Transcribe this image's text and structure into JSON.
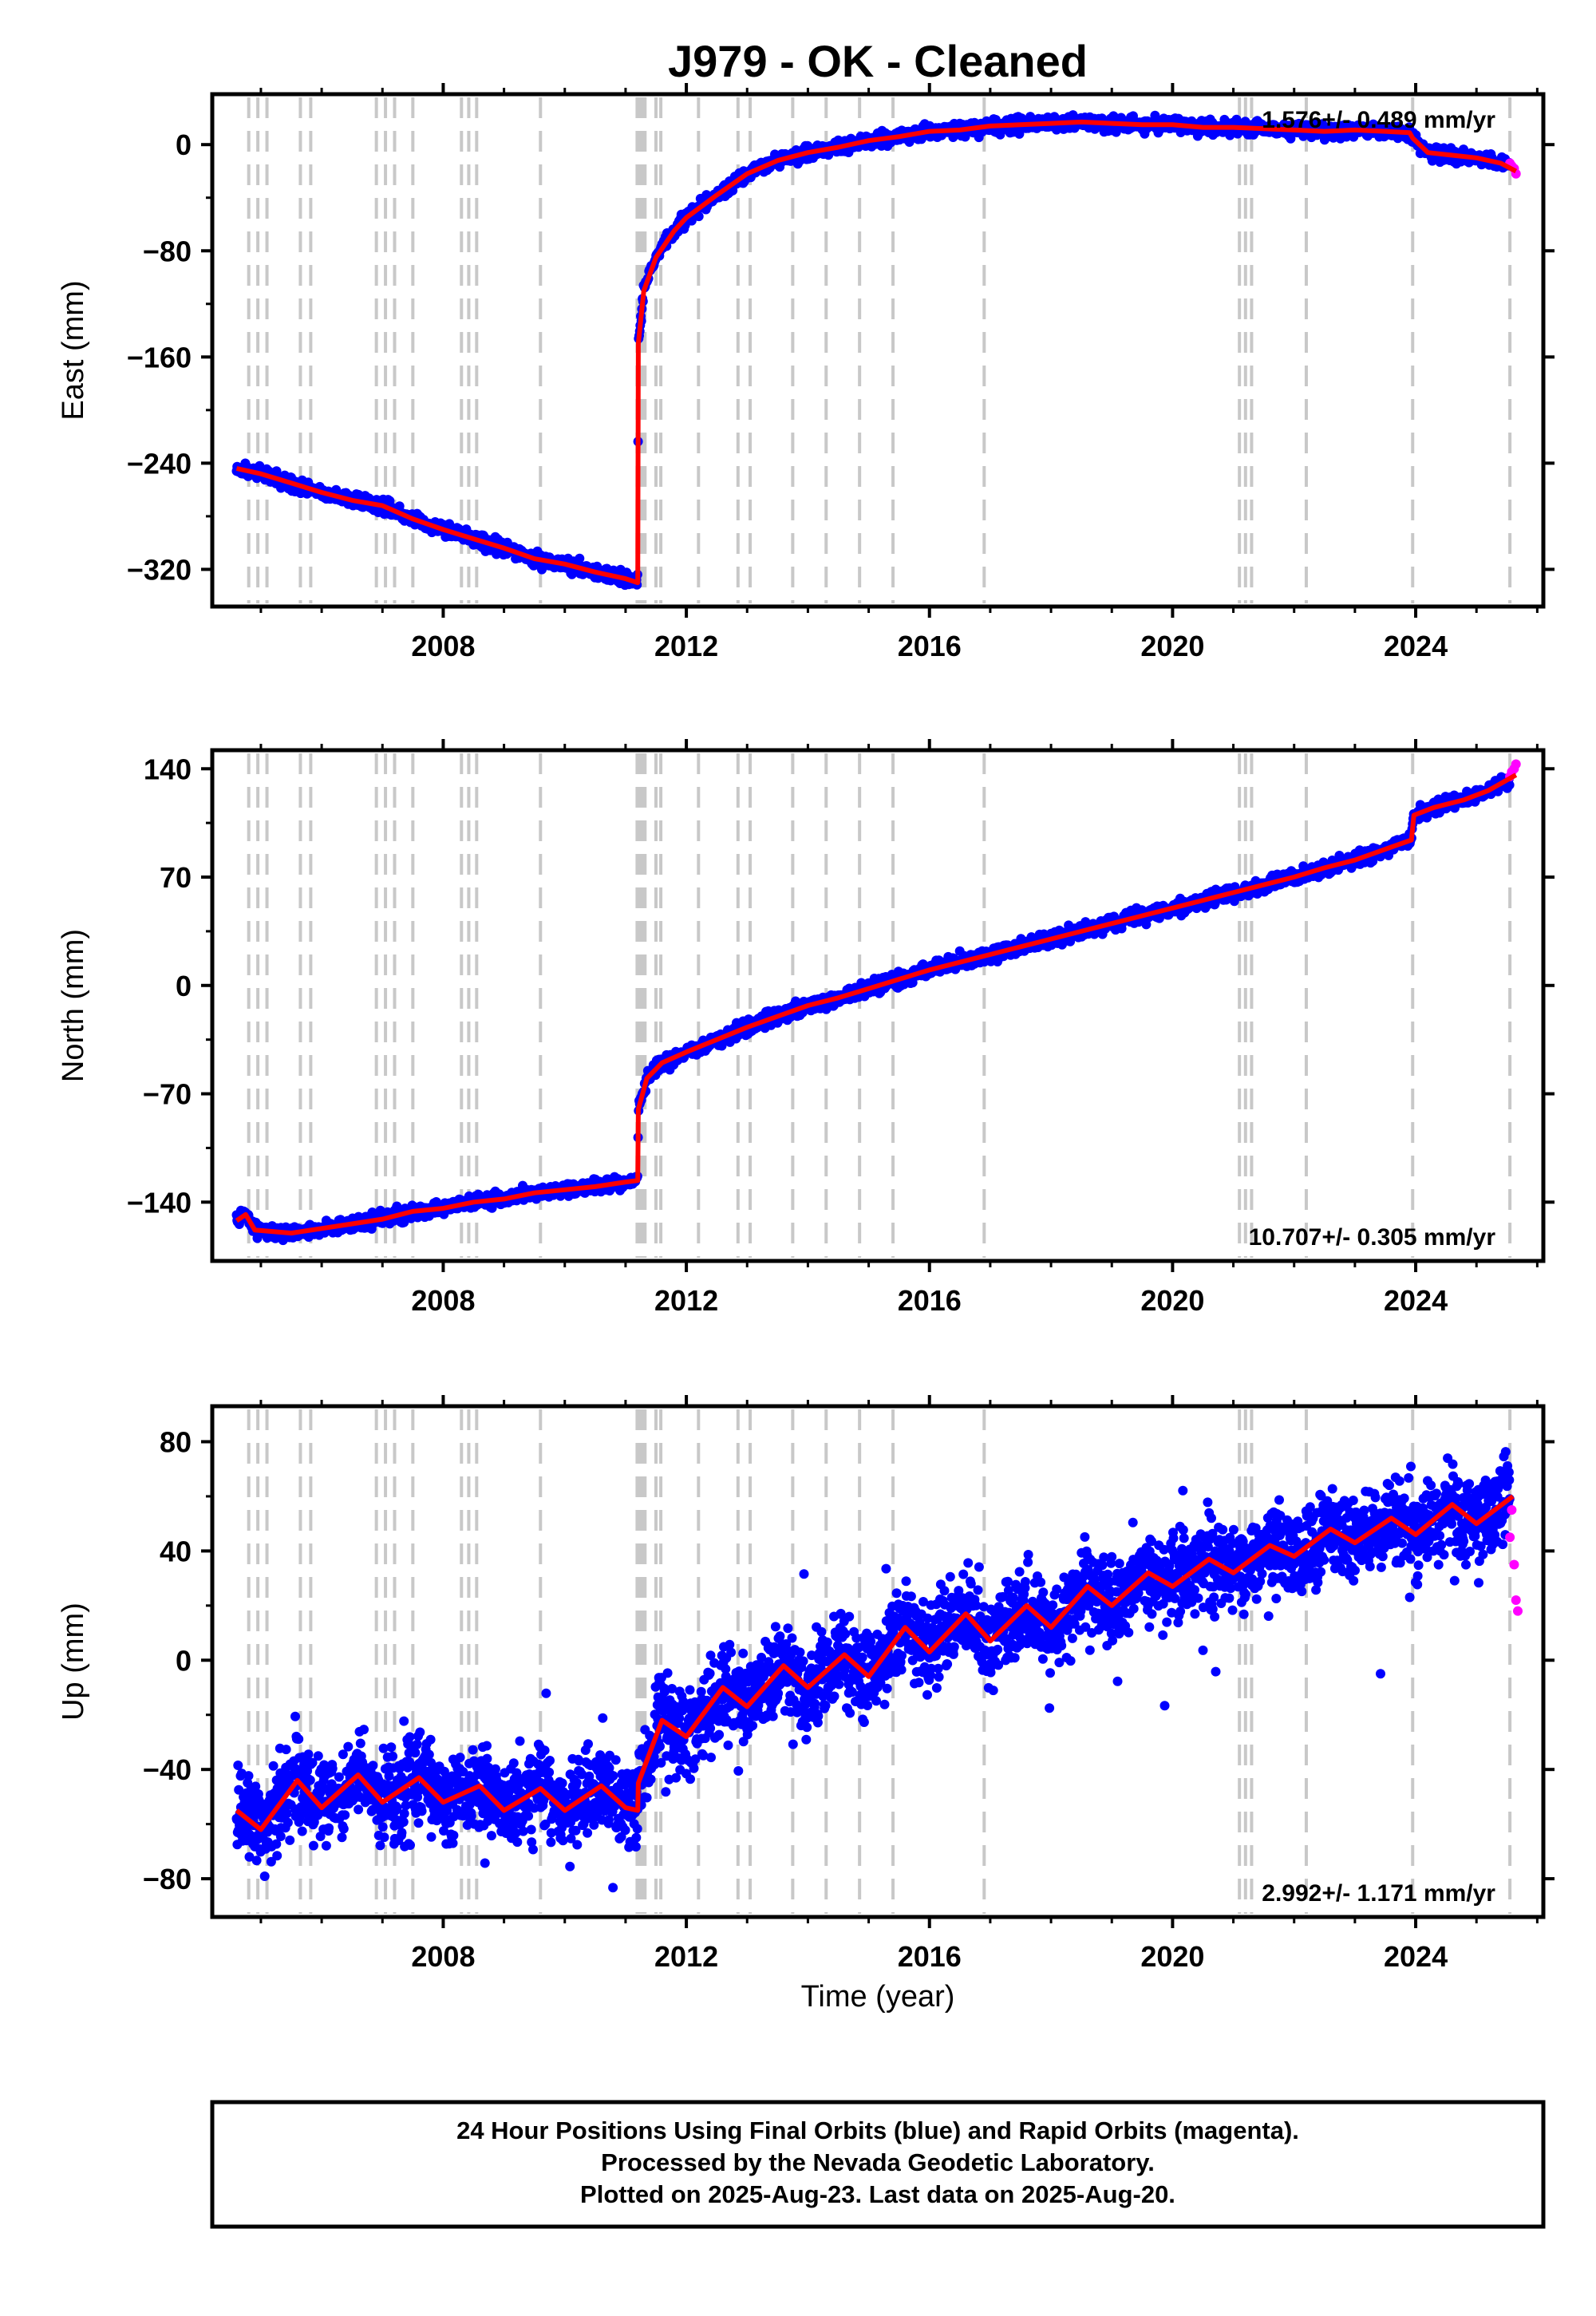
{
  "title": "J979  - OK - Cleaned",
  "x_label": "Time (year)",
  "footer": {
    "line1": "24 Hour Positions Using Final Orbits (blue) and Rapid Orbits (magenta).",
    "line2": "Processed by the Nevada Geodetic Laboratory.",
    "line3": "Plotted on 2025-Aug-23. Last data on 2025-Aug-20."
  },
  "colors": {
    "final_orbits": "#0000ff",
    "rapid_orbits": "#ff00ff",
    "model_fit": "#ff0000",
    "event_lines": "#c8c8c8"
  },
  "chart_data": [
    {
      "type": "scatter",
      "panel": "east",
      "ylabel": "East (mm)",
      "xlim": [
        2004.2,
        2026.1
      ],
      "ylim": [
        -348,
        38
      ],
      "xticks": [
        2008,
        2012,
        2016,
        2020,
        2024
      ],
      "yticks": [
        -320,
        -240,
        -160,
        -80,
        0
      ],
      "rate_text": "1.576+/- 0.489 mm/yr",
      "legend_position": "top-right",
      "event_lines": [
        2004.8,
        2004.95,
        2005.1,
        2005.65,
        2005.82,
        2006.9,
        2007.05,
        2007.2,
        2007.5,
        2008.3,
        2008.42,
        2008.55,
        2009.6,
        2011.19,
        2011.22,
        2011.25,
        2011.28,
        2011.32,
        2011.5,
        2011.58,
        2012.2,
        2012.85,
        2013.05,
        2013.75,
        2014.3,
        2014.85,
        2015.4,
        2016.9,
        2021.1,
        2021.2,
        2021.3,
        2022.2,
        2023.95,
        2025.55
      ],
      "series": [
        {
          "label": "model",
          "x": [
            2004.6,
            2005.0,
            2005.5,
            2006.0,
            2006.5,
            2007.0,
            2007.5,
            2008.0,
            2008.5,
            2009.0,
            2009.5,
            2010.0,
            2010.5,
            2011.0,
            2011.2,
            2011.21,
            2011.3,
            2011.5,
            2011.8,
            2012.0,
            2012.5,
            2013.0,
            2013.5,
            2014.0,
            2014.5,
            2015.0,
            2015.5,
            2016.0,
            2016.5,
            2017.0,
            2017.5,
            2018.0,
            2018.5,
            2019.0,
            2019.5,
            2020.0,
            2020.5,
            2021.0,
            2021.5,
            2022.0,
            2022.5,
            2023.0,
            2023.5,
            2023.9,
            2023.95,
            2024.2,
            2024.6,
            2025.0,
            2025.4,
            2025.65
          ],
          "y": [
            -244,
            -248,
            -255,
            -262,
            -268,
            -272,
            -282,
            -290,
            -297,
            -304,
            -312,
            -316,
            -322,
            -327,
            -330,
            -150,
            -110,
            -85,
            -65,
            -55,
            -38,
            -22,
            -12,
            -6,
            -2,
            3,
            6,
            10,
            11,
            14,
            15,
            16,
            17,
            16,
            15,
            15,
            13,
            13,
            12,
            11,
            10,
            11,
            10,
            9,
            5,
            -6,
            -8,
            -10,
            -14,
            -20
          ]
        },
        {
          "label": "rapid",
          "x": [
            2025.55,
            2025.58,
            2025.62,
            2025.65
          ],
          "y": [
            -14,
            -16,
            -18,
            -22
          ]
        }
      ]
    },
    {
      "type": "scatter",
      "panel": "north",
      "ylabel": "North (mm)",
      "xlim": [
        2004.2,
        2026.1
      ],
      "ylim": [
        -178,
        152
      ],
      "xticks": [
        2008,
        2012,
        2016,
        2020,
        2024
      ],
      "yticks": [
        -140,
        -70,
        0,
        70,
        140
      ],
      "rate_text": "10.707+/- 0.305 mm/yr",
      "legend_position": "bottom-right",
      "event_lines": [
        2004.8,
        2004.95,
        2005.1,
        2005.65,
        2005.82,
        2006.9,
        2007.05,
        2007.2,
        2007.5,
        2008.3,
        2008.42,
        2008.55,
        2009.6,
        2011.19,
        2011.22,
        2011.25,
        2011.28,
        2011.32,
        2011.5,
        2011.58,
        2012.2,
        2012.85,
        2013.05,
        2013.75,
        2014.3,
        2014.85,
        2015.4,
        2016.9,
        2021.1,
        2021.2,
        2021.3,
        2022.2,
        2023.95,
        2025.55
      ],
      "series": [
        {
          "label": "model",
          "x": [
            2004.6,
            2004.75,
            2004.9,
            2005.5,
            2006.0,
            2006.5,
            2007.0,
            2007.5,
            2008.0,
            2008.5,
            2009.0,
            2009.5,
            2010.0,
            2010.5,
            2011.0,
            2011.2,
            2011.21,
            2011.35,
            2011.6,
            2012.0,
            2012.5,
            2013.0,
            2013.5,
            2014.0,
            2014.5,
            2015.0,
            2015.5,
            2016.0,
            2016.5,
            2017.0,
            2017.5,
            2018.0,
            2018.5,
            2019.0,
            2019.5,
            2020.0,
            2020.5,
            2021.0,
            2021.5,
            2022.0,
            2022.5,
            2023.0,
            2023.5,
            2023.93,
            2023.97,
            2024.3,
            2024.8,
            2025.2,
            2025.65
          ],
          "y": [
            -152,
            -148,
            -158,
            -160,
            -157,
            -154,
            -151,
            -146,
            -144,
            -140,
            -138,
            -134,
            -132,
            -130,
            -127,
            -126,
            -80,
            -60,
            -50,
            -43,
            -35,
            -27,
            -20,
            -13,
            -8,
            -2,
            4,
            10,
            15,
            20,
            25,
            30,
            35,
            40,
            45,
            50,
            55,
            60,
            65,
            70,
            76,
            81,
            88,
            94,
            110,
            115,
            120,
            126,
            136
          ]
        },
        {
          "label": "rapid",
          "x": [
            2025.55,
            2025.58,
            2025.62,
            2025.65
          ],
          "y": [
            135,
            138,
            140,
            143
          ]
        }
      ]
    },
    {
      "type": "scatter",
      "panel": "up",
      "ylabel": "Up (mm)",
      "xlim": [
        2004.2,
        2026.1
      ],
      "ylim": [
        -94,
        93
      ],
      "xticks": [
        2008,
        2012,
        2016,
        2020,
        2024
      ],
      "yticks": [
        -80,
        -40,
        0,
        40,
        80
      ],
      "rate_text": "2.992+/- 1.171 mm/yr",
      "legend_position": "bottom-right",
      "event_lines": [
        2004.8,
        2004.95,
        2005.1,
        2005.65,
        2005.82,
        2006.9,
        2007.05,
        2007.2,
        2007.5,
        2008.3,
        2008.42,
        2008.55,
        2009.6,
        2011.19,
        2011.22,
        2011.25,
        2011.28,
        2011.32,
        2011.5,
        2011.58,
        2012.2,
        2012.85,
        2013.05,
        2013.75,
        2014.3,
        2014.85,
        2015.4,
        2016.9,
        2021.1,
        2021.2,
        2021.3,
        2022.2,
        2023.95,
        2025.55
      ],
      "series": [
        {
          "label": "model",
          "x": [
            2004.6,
            2005.0,
            2005.6,
            2006.0,
            2006.6,
            2007.0,
            2007.6,
            2008.0,
            2008.6,
            2009.0,
            2009.6,
            2010.0,
            2010.6,
            2011.0,
            2011.2,
            2011.21,
            2011.6,
            2012.0,
            2012.6,
            2013.0,
            2013.6,
            2014.0,
            2014.6,
            2015.0,
            2015.6,
            2016.0,
            2016.6,
            2017.0,
            2017.6,
            2018.0,
            2018.6,
            2019.0,
            2019.6,
            2020.0,
            2020.6,
            2021.0,
            2021.6,
            2022.0,
            2022.6,
            2023.0,
            2023.6,
            2024.0,
            2024.6,
            2025.0,
            2025.6
          ],
          "y": [
            -55,
            -62,
            -44,
            -54,
            -42,
            -52,
            -43,
            -52,
            -46,
            -55,
            -47,
            -55,
            -46,
            -54,
            -55,
            -45,
            -22,
            -28,
            -10,
            -17,
            -2,
            -10,
            2,
            -6,
            12,
            3,
            17,
            7,
            20,
            12,
            27,
            20,
            32,
            27,
            37,
            32,
            42,
            38,
            48,
            43,
            52,
            46,
            57,
            50,
            60
          ]
        },
        {
          "label": "rapid",
          "x": [
            2025.55,
            2025.58,
            2025.62,
            2025.65,
            2025.68
          ],
          "y": [
            45,
            55,
            35,
            22,
            18
          ]
        }
      ]
    }
  ]
}
